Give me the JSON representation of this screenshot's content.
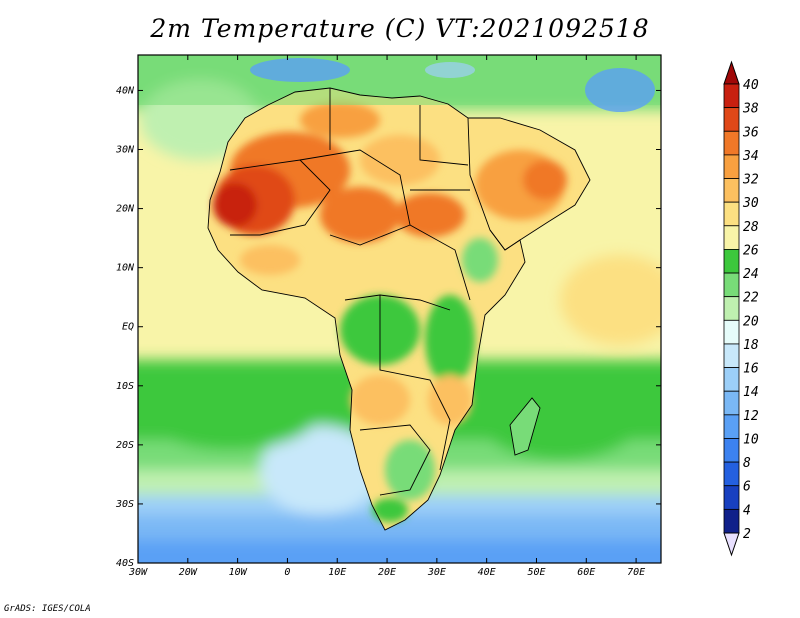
{
  "title": "2m Temperature (C)  VT:2021092518",
  "credit": "GrADS: IGES/COLA",
  "map": {
    "lon_range": [
      -30,
      75
    ],
    "lat_range": [
      -40,
      46
    ],
    "lon_ticks": [
      {
        "value": -30,
        "label": "30W"
      },
      {
        "value": -20,
        "label": "20W"
      },
      {
        "value": -10,
        "label": "10W"
      },
      {
        "value": 0,
        "label": "0"
      },
      {
        "value": 10,
        "label": "10E"
      },
      {
        "value": 20,
        "label": "20E"
      },
      {
        "value": 30,
        "label": "30E"
      },
      {
        "value": 40,
        "label": "40E"
      },
      {
        "value": 50,
        "label": "50E"
      },
      {
        "value": 60,
        "label": "60E"
      },
      {
        "value": 70,
        "label": "70E"
      }
    ],
    "lat_ticks": [
      {
        "value": 40,
        "label": "40N"
      },
      {
        "value": 30,
        "label": "30N"
      },
      {
        "value": 20,
        "label": "20N"
      },
      {
        "value": 10,
        "label": "10N"
      },
      {
        "value": 0,
        "label": "EQ"
      },
      {
        "value": -10,
        "label": "10S"
      },
      {
        "value": -20,
        "label": "20S"
      },
      {
        "value": -30,
        "label": "30S"
      },
      {
        "value": -40,
        "label": "40S"
      }
    ]
  },
  "colorbar": {
    "levels": [
      2,
      4,
      6,
      8,
      10,
      12,
      14,
      16,
      18,
      20,
      22,
      24,
      26,
      28,
      30,
      32,
      34,
      36,
      38,
      40
    ],
    "colors": [
      "#e8e0ff",
      "#10208a",
      "#1840c0",
      "#2460e0",
      "#3c82f0",
      "#5aa0f5",
      "#7ab8f5",
      "#9ccff8",
      "#c8e8fa",
      "#e6fcfa",
      "#bff0b0",
      "#78dc78",
      "#3cc83c",
      "#f8f4a8",
      "#fce082",
      "#fcc060",
      "#f8a040",
      "#f07828",
      "#e04818",
      "#c82010",
      "#a00808"
    ]
  }
}
